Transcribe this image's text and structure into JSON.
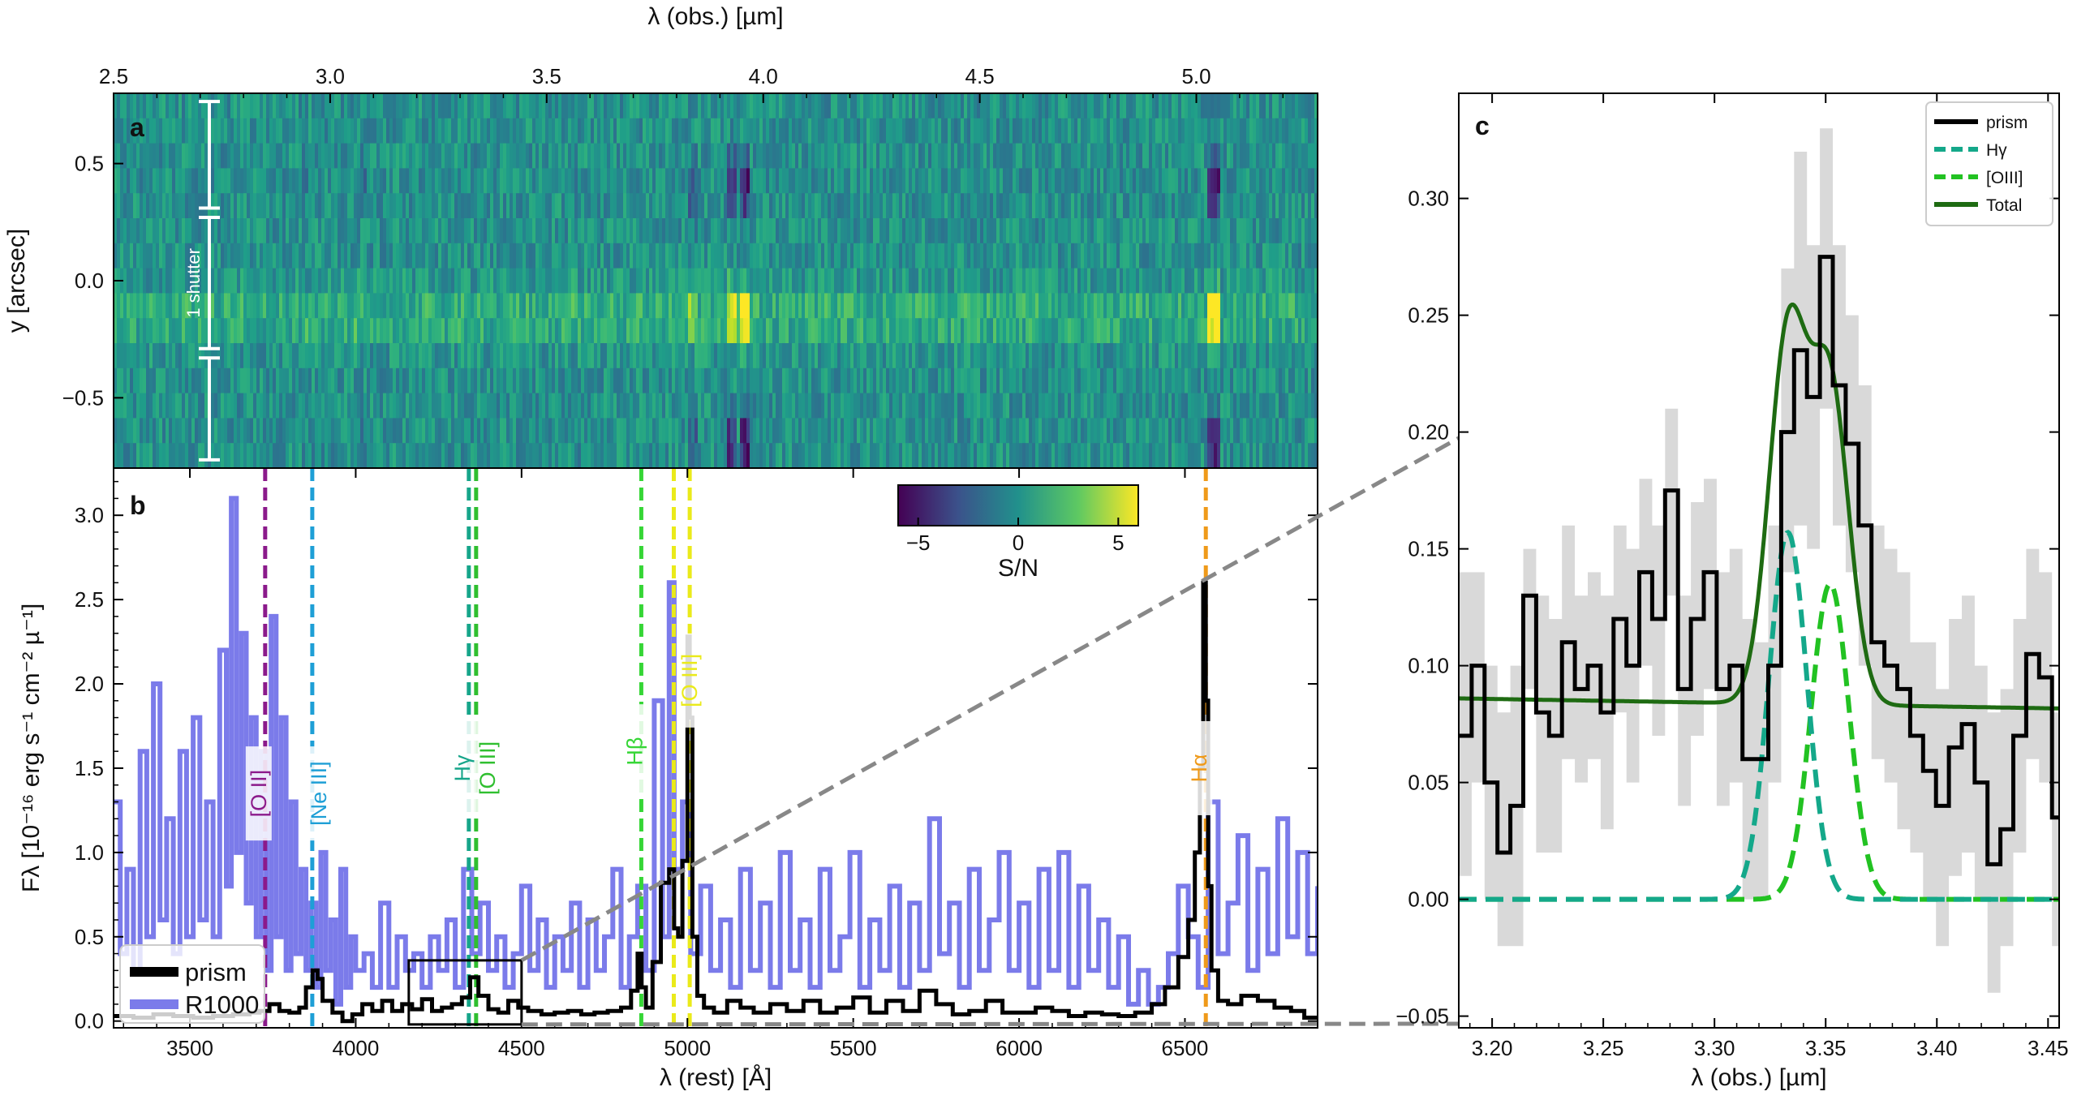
{
  "colors": {
    "prism": "#000000",
    "r1000": "#7b7bea",
    "shade": "#d9d9d9",
    "hgamma_fit": "#14a88a",
    "oiii_fit": "#22c222",
    "total_fit": "#1e6b12",
    "OII": "#8b1a8b",
    "NeIII": "#1e9fd6",
    "Hgamma": "#16a58a",
    "OIII4363": "#2fbf2f",
    "Hbeta": "#36d636",
    "OIII5007": "#eaea1a",
    "Halpha": "#ef9a1a",
    "connector": "#888888"
  },
  "chart_data": [
    {
      "panel": "a",
      "type": "heatmap",
      "x_top_label": "λ (obs.) [µm]",
      "x_top_ticks": [
        2.5,
        3.0,
        3.5,
        4.0,
        4.5,
        5.0
      ],
      "x_top_range": [
        2.5,
        5.28
      ],
      "ylabel": "y [arcsec]",
      "y_ticks": [
        0.5,
        0.0,
        -0.5
      ],
      "y_tick_labels": [
        "0.5",
        "0.0",
        "−0.5"
      ],
      "ylim": [
        -0.8,
        0.8
      ],
      "annotation": "1 shutter",
      "colorbar": {
        "label": "S/N",
        "ticks": [
          -5,
          0,
          5
        ],
        "tick_labels": [
          "−5",
          "0",
          "5"
        ],
        "range": [
          -6,
          6
        ],
        "colormap": "viridis"
      }
    },
    {
      "panel": "b",
      "type": "line",
      "xlabel": "λ (rest) [Å]",
      "ylabel": "Fλ [10⁻¹⁶ erg s⁻¹ cm⁻² µ⁻¹]",
      "x_ticks": [
        3500,
        4000,
        4500,
        5000,
        5500,
        6000,
        6500
      ],
      "y_ticks": [
        0.0,
        0.5,
        1.0,
        1.5,
        2.0,
        2.5,
        3.0
      ],
      "xlim": [
        3270,
        6900
      ],
      "ylim": [
        -0.04,
        3.28
      ],
      "legend": [
        "prism",
        "R1000"
      ],
      "legend_position": "bottom-left",
      "lines": [
        {
          "label": "[O II]",
          "rest": 3727
        },
        {
          "label": "[Ne III]",
          "rest": 3869
        },
        {
          "label": "Hγ",
          "rest": 4341
        },
        {
          "label": "[O III]",
          "rest": 4363
        },
        {
          "label": "Hβ",
          "rest": 4861
        },
        {
          "label": "[O III]",
          "rest": 4959
        },
        {
          "label": "[O III]",
          "rest": 5007
        },
        {
          "label": "Hα",
          "rest": 6563
        }
      ],
      "zoom_box": {
        "x": [
          4160,
          4500
        ],
        "y": [
          -0.02,
          0.36
        ]
      },
      "series": [
        {
          "name": "prism",
          "x": [
            3270,
            3330,
            3390,
            3450,
            3510,
            3570,
            3630,
            3680,
            3710,
            3740,
            3770,
            3800,
            3830,
            3850,
            3870,
            3885,
            3900,
            3930,
            3960,
            3990,
            4020,
            4050,
            4080,
            4110,
            4140,
            4170,
            4200,
            4230,
            4260,
            4290,
            4320,
            4345,
            4370,
            4400,
            4430,
            4460,
            4490,
            4520,
            4560,
            4600,
            4640,
            4680,
            4720,
            4760,
            4800,
            4830,
            4850,
            4862,
            4875,
            4895,
            4920,
            4945,
            4960,
            4972,
            4985,
            5000,
            5007,
            5015,
            5030,
            5050,
            5080,
            5120,
            5160,
            5200,
            5250,
            5300,
            5350,
            5400,
            5450,
            5500,
            5550,
            5600,
            5650,
            5700,
            5750,
            5800,
            5850,
            5900,
            5950,
            6000,
            6050,
            6100,
            6150,
            6200,
            6250,
            6300,
            6350,
            6400,
            6440,
            6480,
            6510,
            6530,
            6545,
            6555,
            6563,
            6570,
            6580,
            6600,
            6630,
            6670,
            6720,
            6770,
            6820,
            6860,
            6900
          ],
          "y": [
            0.03,
            0.02,
            0.04,
            0.03,
            0.02,
            0.03,
            0.04,
            0.05,
            0.06,
            0.1,
            0.06,
            0.05,
            0.08,
            0.2,
            0.3,
            0.25,
            0.12,
            0.05,
            0.0,
            0.04,
            0.1,
            0.06,
            0.12,
            0.06,
            0.1,
            0.07,
            0.13,
            0.06,
            0.08,
            0.1,
            0.14,
            0.26,
            0.15,
            0.07,
            0.05,
            0.12,
            0.08,
            0.06,
            0.04,
            0.05,
            0.06,
            0.04,
            0.05,
            0.06,
            0.08,
            0.18,
            0.4,
            0.2,
            0.08,
            0.35,
            0.82,
            0.9,
            0.55,
            0.5,
            0.95,
            2.28,
            1.8,
            0.5,
            0.15,
            0.08,
            0.05,
            0.12,
            0.08,
            0.05,
            0.1,
            0.06,
            0.12,
            0.05,
            0.08,
            0.14,
            0.05,
            0.12,
            0.06,
            0.18,
            0.1,
            0.04,
            0.06,
            0.12,
            0.05,
            0.05,
            0.08,
            0.06,
            0.03,
            0.05,
            0.04,
            0.03,
            0.05,
            0.1,
            0.2,
            0.38,
            0.6,
            1.0,
            1.5,
            2.6,
            1.9,
            0.8,
            0.3,
            0.12,
            0.1,
            0.15,
            0.12,
            0.08,
            0.06,
            0.02,
            0.02
          ]
        },
        {
          "name": "R1000",
          "x": [
            3270,
            3290,
            3310,
            3330,
            3350,
            3370,
            3390,
            3410,
            3430,
            3450,
            3470,
            3490,
            3510,
            3530,
            3550,
            3570,
            3590,
            3610,
            3625,
            3640,
            3655,
            3670,
            3685,
            3700,
            3715,
            3730,
            3745,
            3760,
            3775,
            3790,
            3805,
            3820,
            3835,
            3850,
            3865,
            3880,
            3895,
            3910,
            3925,
            3940,
            3955,
            3970,
            3985,
            4000,
            4025,
            4050,
            4075,
            4100,
            4125,
            4150,
            4175,
            4200,
            4225,
            4250,
            4275,
            4300,
            4325,
            4350,
            4375,
            4400,
            4425,
            4450,
            4475,
            4500,
            4525,
            4550,
            4575,
            4600,
            4625,
            4650,
            4675,
            4700,
            4725,
            4750,
            4775,
            4800,
            4825,
            4850,
            4875,
            4900,
            4925,
            4945,
            4960,
            4985,
            5010,
            5040,
            5070,
            5100,
            5130,
            5160,
            5190,
            5220,
            5250,
            5280,
            5310,
            5340,
            5370,
            5400,
            5430,
            5460,
            5490,
            5520,
            5550,
            5580,
            5610,
            5640,
            5670,
            5700,
            5730,
            5760,
            5790,
            5820,
            5850,
            5880,
            5910,
            5940,
            5970,
            6000,
            6030,
            6060,
            6090,
            6120,
            6150,
            6180,
            6210,
            6240,
            6270,
            6300,
            6330,
            6360,
            6390,
            6420,
            6450,
            6480,
            6510,
            6540,
            6570,
            6600,
            6630,
            6660,
            6690,
            6720,
            6750,
            6780,
            6810,
            6840,
            6870,
            6900
          ],
          "y": [
            1.3,
            0.4,
            0.9,
            0.3,
            1.6,
            0.5,
            2.0,
            0.6,
            1.2,
            0.4,
            1.6,
            0.5,
            1.8,
            0.6,
            1.3,
            0.5,
            2.2,
            0.8,
            3.1,
            1.0,
            2.3,
            0.7,
            1.8,
            0.5,
            1.6,
            0.3,
            2.4,
            0.5,
            1.8,
            0.3,
            1.3,
            0.4,
            0.9,
            0.3,
            0.7,
            0.2,
            1.0,
            0.3,
            0.6,
            0.1,
            0.9,
            0.2,
            0.5,
            0.3,
            0.4,
            0.2,
            0.7,
            0.2,
            0.5,
            0.3,
            0.4,
            0.2,
            0.5,
            0.3,
            0.6,
            0.2,
            0.9,
            0.4,
            0.7,
            0.3,
            0.5,
            0.2,
            0.4,
            0.8,
            0.3,
            0.6,
            0.2,
            0.5,
            0.3,
            0.7,
            0.2,
            0.6,
            0.3,
            0.5,
            0.9,
            0.2,
            0.5,
            0.8,
            0.3,
            1.9,
            0.5,
            2.6,
            0.9,
            1.3,
            0.4,
            0.8,
            0.3,
            0.6,
            0.2,
            0.9,
            0.3,
            0.7,
            0.2,
            1.0,
            0.3,
            0.6,
            0.2,
            0.9,
            0.3,
            0.5,
            1.0,
            0.2,
            0.6,
            0.3,
            0.8,
            0.2,
            0.7,
            0.3,
            1.2,
            0.4,
            0.7,
            0.2,
            0.9,
            0.3,
            0.6,
            1.0,
            0.3,
            0.7,
            0.2,
            0.9,
            0.3,
            1.0,
            0.2,
            0.8,
            0.3,
            0.6,
            0.2,
            0.5,
            0.1,
            0.3,
            0.1,
            0.2,
            0.4,
            0.8,
            0.5,
            0.2,
            1.3,
            0.4,
            0.7,
            1.1,
            0.3,
            0.9,
            0.4,
            1.2,
            0.5,
            1.0,
            0.4,
            0.8
          ]
        }
      ]
    },
    {
      "panel": "c",
      "type": "line",
      "xlabel": "λ (obs.) [µm]",
      "x_ticks": [
        3.2,
        3.25,
        3.3,
        3.35,
        3.4,
        3.45
      ],
      "x_tick_labels": [
        "3.20",
        "3.25",
        "3.30",
        "3.35",
        "3.40",
        "3.45"
      ],
      "y_ticks": [
        -0.05,
        0.0,
        0.05,
        0.1,
        0.15,
        0.2,
        0.25,
        0.3
      ],
      "y_tick_labels": [
        "−0.05",
        "0.00",
        "0.05",
        "0.10",
        "0.15",
        "0.20",
        "0.25",
        "0.30"
      ],
      "xlim": [
        3.185,
        3.455
      ],
      "ylim": [
        -0.055,
        0.345
      ],
      "legend": [
        "prism",
        "Hγ",
        "[OIII]",
        "Total"
      ],
      "legend_position": "top-right",
      "prism_steps": {
        "x_start": 3.185,
        "x_step": 0.0058,
        "y": [
          0.07,
          0.1,
          0.05,
          0.02,
          0.04,
          0.13,
          0.08,
          0.07,
          0.11,
          0.09,
          0.1,
          0.08,
          0.12,
          0.1,
          0.14,
          0.12,
          0.175,
          0.09,
          0.12,
          0.14,
          0.09,
          0.1,
          0.06,
          0.06,
          0.1,
          0.2,
          0.235,
          0.215,
          0.275,
          0.22,
          0.195,
          0.16,
          0.11,
          0.1,
          0.09,
          0.07,
          0.055,
          0.04,
          0.065,
          0.075,
          0.05,
          0.015,
          0.03,
          0.07,
          0.105,
          0.095,
          0.035,
          0.03
        ]
      },
      "err_band": {
        "upper": [
          0.14,
          0.14,
          0.1,
          0.08,
          0.1,
          0.15,
          0.13,
          0.12,
          0.16,
          0.13,
          0.14,
          0.13,
          0.16,
          0.15,
          0.18,
          0.16,
          0.21,
          0.13,
          0.17,
          0.18,
          0.14,
          0.15,
          0.12,
          0.11,
          0.16,
          0.27,
          0.32,
          0.28,
          0.33,
          0.28,
          0.25,
          0.22,
          0.16,
          0.15,
          0.14,
          0.11,
          0.11,
          0.09,
          0.12,
          0.13,
          0.1,
          0.08,
          0.09,
          0.12,
          0.15,
          0.14,
          0.08,
          0.07
        ],
        "lower": [
          0.01,
          0.05,
          0.0,
          -0.02,
          -0.02,
          0.09,
          0.02,
          0.02,
          0.06,
          0.05,
          0.06,
          0.03,
          0.08,
          0.05,
          0.1,
          0.07,
          0.13,
          0.04,
          0.07,
          0.09,
          0.04,
          0.05,
          0.0,
          0.0,
          0.05,
          0.14,
          0.16,
          0.15,
          0.21,
          0.16,
          0.14,
          0.1,
          0.06,
          0.05,
          0.03,
          0.02,
          0.0,
          -0.02,
          0.01,
          0.02,
          0.0,
          -0.04,
          -0.02,
          0.02,
          0.06,
          0.05,
          -0.02,
          -0.02
        ]
      },
      "fit": {
        "continuum_intercept": 0.086,
        "continuum_slope_per_um": -0.016,
        "hgamma": {
          "center": 3.333,
          "amp": 0.157,
          "sigma": 0.0085
        },
        "oiii": {
          "center": 3.352,
          "amp": 0.135,
          "sigma": 0.0085
        }
      }
    }
  ]
}
